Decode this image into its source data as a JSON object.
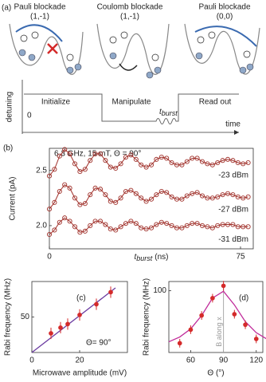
{
  "panel_a": {
    "label": "(a)",
    "stages": [
      {
        "title": "Pauli blockade",
        "state": "(1,-1)",
        "step": "Initialize"
      },
      {
        "title": "Coulomb blockade",
        "state": "(1,-1)",
        "step": "Manipulate"
      },
      {
        "title": "Pauli blockade",
        "state": "(0,0)",
        "step": "Read out"
      }
    ],
    "y_label": "detuning",
    "zero_label": "0",
    "x_label": "time",
    "pulse_label": "t",
    "pulse_sub": "burst"
  },
  "chart_data": [
    {
      "type": "scatter",
      "panel": "(b)",
      "annotation": "6.3 GHz, 15 mT, Θ = 90°",
      "y_label": "Current (pA)",
      "x_label": "t",
      "x_label_sub": "burst",
      "x_label_unit": "(ns)",
      "marker": "open",
      "connect": true,
      "x": [
        0,
        2,
        4,
        6,
        8,
        10,
        12,
        14,
        16,
        18,
        20,
        22,
        24,
        26,
        28,
        30,
        32,
        34,
        36,
        38,
        40,
        42,
        44,
        46,
        48,
        50,
        52,
        54,
        56,
        58,
        60,
        62,
        64,
        66,
        68,
        70,
        72,
        74,
        76,
        78
      ],
      "series": [
        {
          "name": "-23 dBm",
          "color": "#a0302a",
          "values": [
            2.45,
            2.51,
            2.63,
            2.69,
            2.65,
            2.56,
            2.49,
            2.51,
            2.59,
            2.65,
            2.65,
            2.59,
            2.53,
            2.52,
            2.56,
            2.62,
            2.64,
            2.6,
            2.55,
            2.53,
            2.55,
            2.6,
            2.62,
            2.61,
            2.57,
            2.55,
            2.55,
            2.58,
            2.61,
            2.61,
            2.58,
            2.56,
            2.55,
            2.57,
            2.59,
            2.6,
            2.59,
            2.57,
            2.56,
            2.57
          ]
        },
        {
          "name": "-27 dBm",
          "color": "#a0302a",
          "values": [
            2.15,
            2.21,
            2.31,
            2.37,
            2.34,
            2.25,
            2.19,
            2.2,
            2.28,
            2.34,
            2.33,
            2.28,
            2.22,
            2.21,
            2.25,
            2.31,
            2.32,
            2.29,
            2.25,
            2.22,
            2.24,
            2.28,
            2.31,
            2.3,
            2.26,
            2.24,
            2.24,
            2.27,
            2.29,
            2.3,
            2.27,
            2.25,
            2.25,
            2.26,
            2.28,
            2.29,
            2.28,
            2.26,
            2.25,
            2.26
          ]
        },
        {
          "name": "-31 dBm",
          "color": "#a0302a",
          "values": [
            1.92,
            1.96,
            2.03,
            2.07,
            2.04,
            1.99,
            1.94,
            1.95,
            2.0,
            2.04,
            2.04,
            2.01,
            1.97,
            1.96,
            1.99,
            2.02,
            2.04,
            2.02,
            1.98,
            1.97,
            1.98,
            2.01,
            2.03,
            2.02,
            2.0,
            1.98,
            1.98,
            2.0,
            2.02,
            2.02,
            2.0,
            1.99,
            1.98,
            2.0,
            2.01,
            2.01,
            2.01,
            1.99,
            1.99,
            1.99
          ]
        }
      ],
      "xlim": [
        0,
        80
      ],
      "ylim": [
        1.79,
        2.7
      ],
      "xticks": [
        0,
        75
      ],
      "yticks": [
        {
          "value": 2,
          "label": "2.0"
        },
        {
          "value": 2.5,
          "label": "2.5"
        }
      ]
    },
    {
      "type": "scatter",
      "panel": "(c)",
      "annotation": "Θ= 90°",
      "y_label": "Rabi frequency (MHz)",
      "x_label": "Microwave amplitude (mV)",
      "marker": "filled",
      "connect": false,
      "x": [
        8,
        12,
        15,
        20,
        27,
        33
      ],
      "series": [
        {
          "color": "#d42a2a",
          "values": [
            27,
            35,
            40,
            53,
            68,
            85
          ],
          "errors": [
            8,
            8,
            8,
            8,
            8,
            8
          ]
        }
      ],
      "fit": {
        "color": "#6a3aa0",
        "x": [
          0,
          35
        ],
        "values": [
          0,
          91
        ]
      },
      "xlim": [
        0,
        40
      ],
      "ylim": [
        0,
        100
      ],
      "xticks": [
        0,
        20
      ],
      "yticks": [
        50
      ]
    },
    {
      "type": "scatter",
      "panel": "(d)",
      "annotation": "B along x",
      "guide_x": 90,
      "y_label": "Rabi frequency (MHz)",
      "x_label": "Θ (°)",
      "marker": "filled",
      "connect": false,
      "x": [
        50,
        60,
        70,
        80,
        90,
        100,
        110,
        120
      ],
      "series": [
        {
          "color": "#d42a2a",
          "values": [
            15,
            37,
            60,
            88,
            108,
            62,
            45,
            22
          ],
          "errors": [
            7,
            7,
            7,
            7,
            8,
            7,
            7,
            7
          ]
        }
      ],
      "fit": {
        "color": "#c02a9a",
        "x": [
          40,
          50,
          60,
          70,
          80,
          90,
          100,
          110,
          120,
          130
        ],
        "values": [
          17.4,
          25.1,
          38.2,
          59.9,
          88.3,
          99.2,
          77.1,
          50,
          32.1,
          21.5
        ]
      },
      "xlim": [
        40,
        126
      ],
      "ylim": [
        0,
        115
      ],
      "xticks": [
        60,
        90,
        120
      ],
      "yticks": [
        100
      ]
    }
  ]
}
